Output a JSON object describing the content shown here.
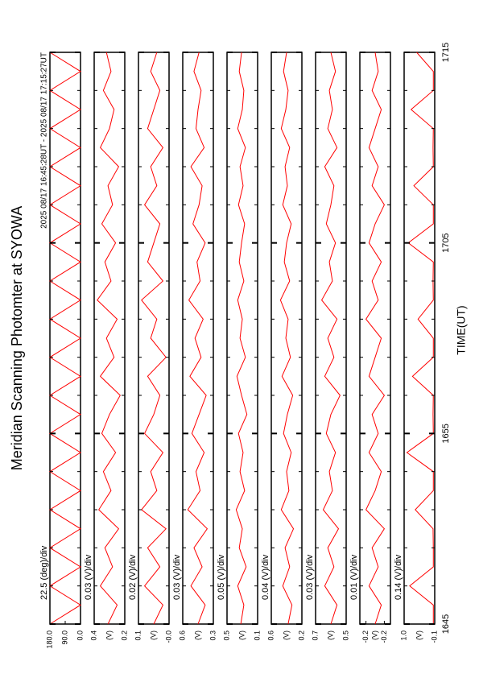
{
  "chart_data": {
    "type": "line",
    "title": "Meridian Scanning Photomter at SYOWA",
    "subtitle": "2025 08/17 16:45:28UT - 2025 08/17 17:15:27UT",
    "xlabel": "TIME(UT)",
    "color": "#ff0000",
    "xlim": [
      1005,
      1035
    ],
    "xticks": [
      {
        "value": 1005,
        "label": "1645"
      },
      {
        "value": 1015,
        "label": "1655"
      },
      {
        "value": 1025,
        "label": "1705"
      },
      {
        "value": 1035,
        "label": "1715"
      }
    ],
    "xminorticks": [
      1007,
      1009,
      1011,
      1013,
      1017,
      1019,
      1021,
      1023,
      1027,
      1029,
      1031,
      1033
    ],
    "x": [
      1005,
      1006,
      1007,
      1008,
      1009,
      1010,
      1011,
      1012,
      1013,
      1014,
      1015,
      1016,
      1017,
      1018,
      1019,
      1020,
      1021,
      1022,
      1023,
      1024,
      1025,
      1026,
      1027,
      1028,
      1029,
      1030,
      1031,
      1032,
      1033,
      1034,
      1035
    ],
    "panels": [
      {
        "scale": "22.5 (deg)/div",
        "ylim": [
          0,
          180
        ],
        "yticks": [
          {
            "value": 180,
            "label": "180.0"
          },
          {
            "value": 90,
            "label": "90.0"
          },
          {
            "value": 0,
            "label": "0.0"
          }
        ],
        "values": [
          180,
          0,
          180,
          0,
          180,
          0,
          180,
          0,
          180,
          0,
          180,
          0,
          180,
          0,
          180,
          0,
          180,
          0,
          180,
          0,
          180,
          0,
          180,
          0,
          180,
          0,
          180,
          0,
          180,
          0,
          180
        ]
      },
      {
        "scale": "0.03 (V)/div",
        "unit": "(V)",
        "ylim": [
          0.2,
          0.4
        ],
        "yticks": [
          0.4,
          0.2
        ],
        "values": [
          0.31,
          0.25,
          0.36,
          0.28,
          0.33,
          0.24,
          0.37,
          0.29,
          0.34,
          0.26,
          0.35,
          0.3,
          0.23,
          0.36,
          0.27,
          0.32,
          0.25,
          0.38,
          0.29,
          0.33,
          0.26,
          0.35,
          0.28,
          0.31,
          0.24,
          0.36,
          0.3,
          0.27,
          0.34,
          0.29,
          0.32
        ]
      },
      {
        "scale": "0.02 (V)/div",
        "unit": "(V)",
        "ylim": [
          0,
          0.1
        ],
        "yticks": [
          0.1,
          {
            "value": 0,
            "label": "-0.0"
          }
        ],
        "values": [
          0.05,
          0.02,
          0.08,
          0.03,
          0.07,
          0.01,
          0.09,
          0.04,
          0.06,
          0.02,
          0.08,
          0.05,
          0.03,
          0.07,
          0.01,
          0.06,
          0.04,
          0.09,
          0.02,
          0.07,
          0.05,
          0.03,
          0.08,
          0.04,
          0.06,
          0.02,
          0.07,
          0.05,
          0.03,
          0.06,
          0.04
        ]
      },
      {
        "scale": "0.03 (V)/div",
        "unit": "(V)",
        "ylim": [
          0.3,
          0.6
        ],
        "yticks": [
          0.6,
          0.3
        ],
        "values": [
          0.45,
          0.38,
          0.52,
          0.41,
          0.49,
          0.36,
          0.55,
          0.43,
          0.47,
          0.39,
          0.51,
          0.44,
          0.37,
          0.53,
          0.42,
          0.48,
          0.4,
          0.54,
          0.43,
          0.46,
          0.38,
          0.5,
          0.44,
          0.41,
          0.52,
          0.39,
          0.47,
          0.45,
          0.42,
          0.49,
          0.44
        ]
      },
      {
        "scale": "0.05 (V)/div",
        "unit": "(V)",
        "ylim": [
          0.1,
          0.5
        ],
        "yticks": [
          0.5,
          0.1
        ],
        "values": [
          0.32,
          0.28,
          0.36,
          0.25,
          0.34,
          0.3,
          0.38,
          0.27,
          0.33,
          0.29,
          0.35,
          0.24,
          0.31,
          0.37,
          0.26,
          0.33,
          0.3,
          0.36,
          0.28,
          0.34,
          0.31,
          0.27,
          0.35,
          0.29,
          0.33,
          0.26,
          0.36,
          0.3,
          0.28,
          0.34,
          0.31
        ]
      },
      {
        "scale": "0.04 (V)/div",
        "unit": "(V)",
        "ylim": [
          0.2,
          0.6
        ],
        "yticks": [
          0.6,
          0.2
        ],
        "values": [
          0.38,
          0.33,
          0.45,
          0.36,
          0.42,
          0.31,
          0.47,
          0.37,
          0.4,
          0.34,
          0.44,
          0.39,
          0.32,
          0.46,
          0.35,
          0.41,
          0.38,
          0.48,
          0.36,
          0.43,
          0.4,
          0.34,
          0.45,
          0.39,
          0.42,
          0.36,
          0.47,
          0.41,
          0.38,
          0.44,
          0.4
        ]
      },
      {
        "scale": "0.03 (V)/div",
        "unit": "(V)",
        "ylim": [
          0.5,
          0.7
        ],
        "yticks": [
          0.7,
          0.5
        ],
        "values": [
          0.6,
          0.56,
          0.64,
          0.58,
          0.62,
          0.55,
          0.65,
          0.59,
          0.61,
          0.57,
          0.63,
          0.6,
          0.54,
          0.64,
          0.58,
          0.62,
          0.56,
          0.66,
          0.59,
          0.61,
          0.57,
          0.63,
          0.6,
          0.58,
          0.64,
          0.56,
          0.62,
          0.59,
          0.61,
          0.57,
          0.6
        ]
      },
      {
        "scale": "0.01 (V)/div",
        "unit": "(V)",
        "ylim": [
          -0.25,
          -0.15
        ],
        "yticks": [
          {
            "value": -0.17,
            "label": "-0.2"
          },
          {
            "value": -0.23,
            "label": "-0.2"
          }
        ],
        "values": [
          -0.2,
          -0.22,
          -0.18,
          -0.21,
          -0.19,
          -0.23,
          -0.17,
          -0.2,
          -0.22,
          -0.18,
          -0.21,
          -0.19,
          -0.23,
          -0.18,
          -0.2,
          -0.22,
          -0.17,
          -0.21,
          -0.19,
          -0.22,
          -0.18,
          -0.2,
          -0.23,
          -0.19,
          -0.21,
          -0.18,
          -0.2,
          -0.22,
          -0.19,
          -0.21,
          -0.2
        ]
      },
      {
        "scale": "0.14 (V)/div",
        "unit": "(V)",
        "ylim": [
          -0.1,
          1.0
        ],
        "yticks": [
          {
            "value": 1,
            "label": "1.0"
          },
          -0.1
        ],
        "values": [
          -0.05,
          -0.05,
          0.8,
          -0.05,
          -0.05,
          -0.04,
          0.6,
          -0.05,
          -0.05,
          0.9,
          -0.05,
          -0.04,
          -0.05,
          0.7,
          -0.05,
          -0.05,
          0.5,
          -0.05,
          -0.04,
          -0.05,
          0.85,
          -0.05,
          -0.05,
          0.65,
          -0.05,
          -0.04,
          -0.05,
          0.75,
          -0.05,
          -0.05,
          0.55
        ]
      }
    ]
  }
}
